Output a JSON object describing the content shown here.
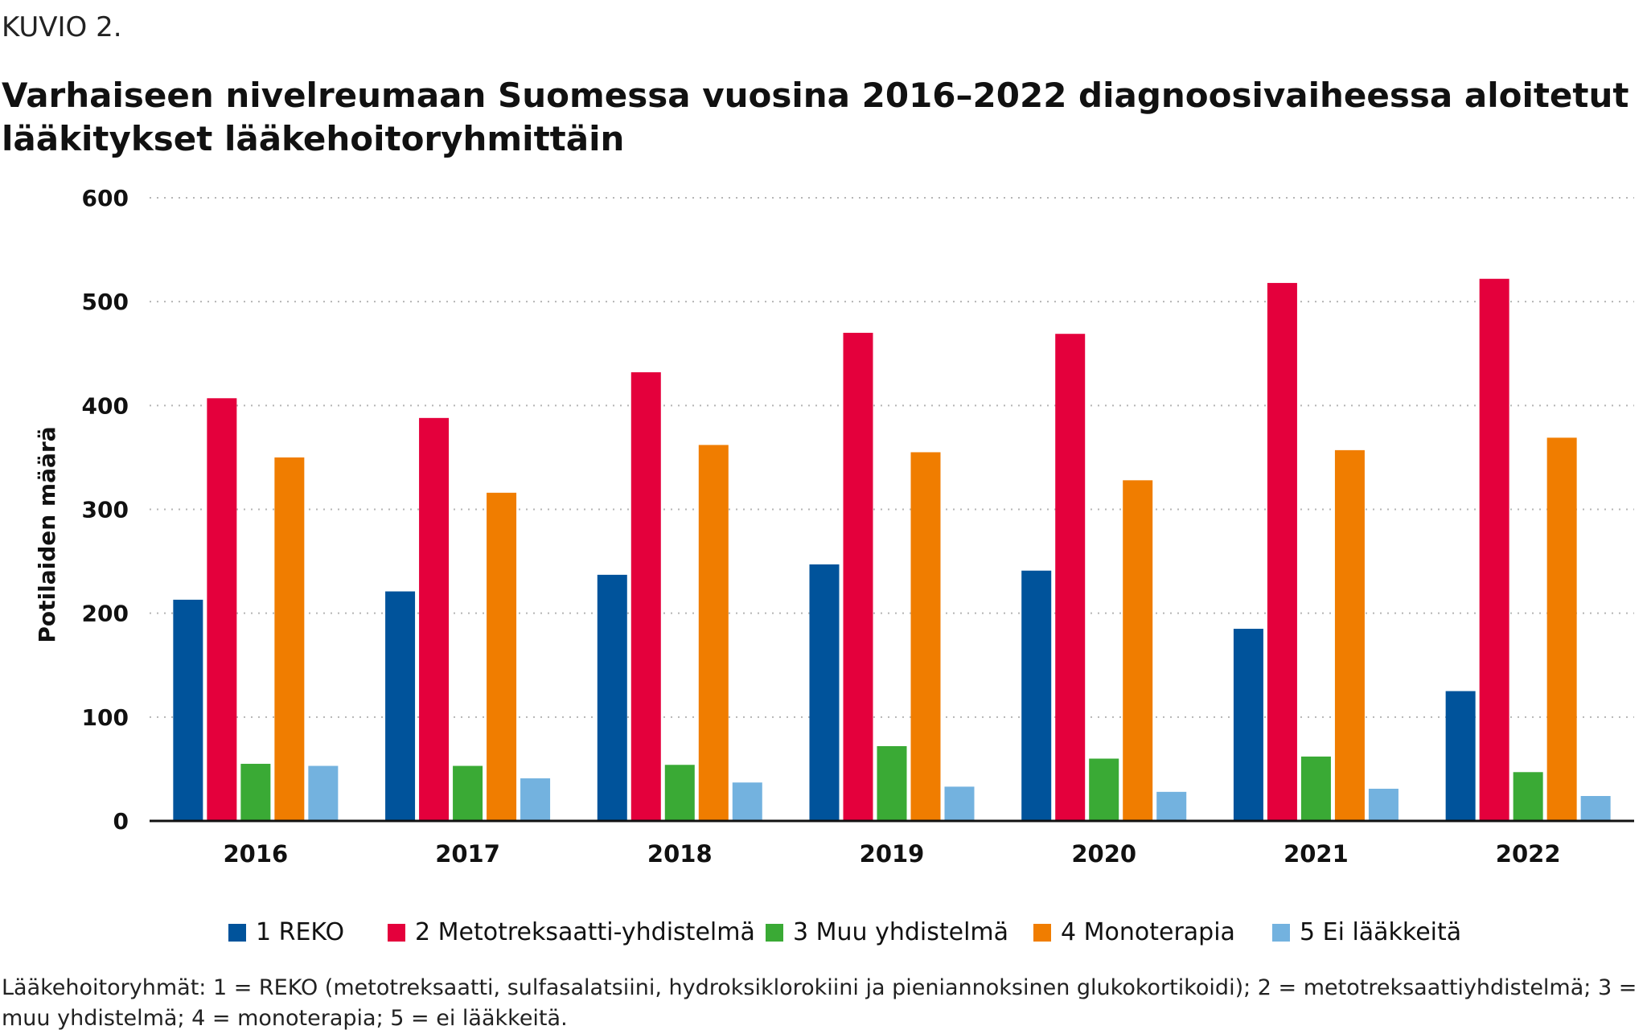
{
  "figure_label": "KUVIO 2.",
  "chart_data": {
    "type": "bar",
    "title": "Varhaiseen nivelreumaan Suomessa vuosina 2016–2022 diagnoosivaiheessa aloitetut lääkitykset lääkehoitoryhmittäin",
    "ylabel": "Potilaiden määrä",
    "xlabel": "",
    "ylim": [
      0,
      600
    ],
    "yticks": [
      0,
      100,
      200,
      300,
      400,
      500,
      600
    ],
    "grid": "horizontal-dotted",
    "legend_position": "bottom",
    "categories": [
      "2016",
      "2017",
      "2018",
      "2019",
      "2020",
      "2021",
      "2022"
    ],
    "series": [
      {
        "name": "1 REKO",
        "color": "#00539b",
        "values": [
          213,
          221,
          237,
          247,
          241,
          185,
          125
        ]
      },
      {
        "name": "2 Metotreksaatti-yhdistelmä",
        "color": "#e4003c",
        "values": [
          407,
          388,
          432,
          470,
          469,
          518,
          522
        ]
      },
      {
        "name": "3 Muu yhdistelmä",
        "color": "#3aaa35",
        "values": [
          55,
          53,
          54,
          72,
          60,
          62,
          47
        ]
      },
      {
        "name": "4 Monoterapia",
        "color": "#f07d00",
        "values": [
          350,
          316,
          362,
          355,
          328,
          357,
          369
        ]
      },
      {
        "name": "5 Ei lääkkeitä",
        "color": "#73b2df",
        "values": [
          53,
          41,
          37,
          33,
          28,
          31,
          24
        ]
      }
    ]
  },
  "footnote": "Lääkehoitoryhmät: 1 = REKO (metotreksaatti, sulfasalatsiini, hydroksiklorokiini ja pieniannoksinen glukokortikoidi); 2 = metotreksaattiyhdistelmä; 3 = muu yhdistelmä; 4 = monoterapia; 5 = ei lääkkeitä."
}
